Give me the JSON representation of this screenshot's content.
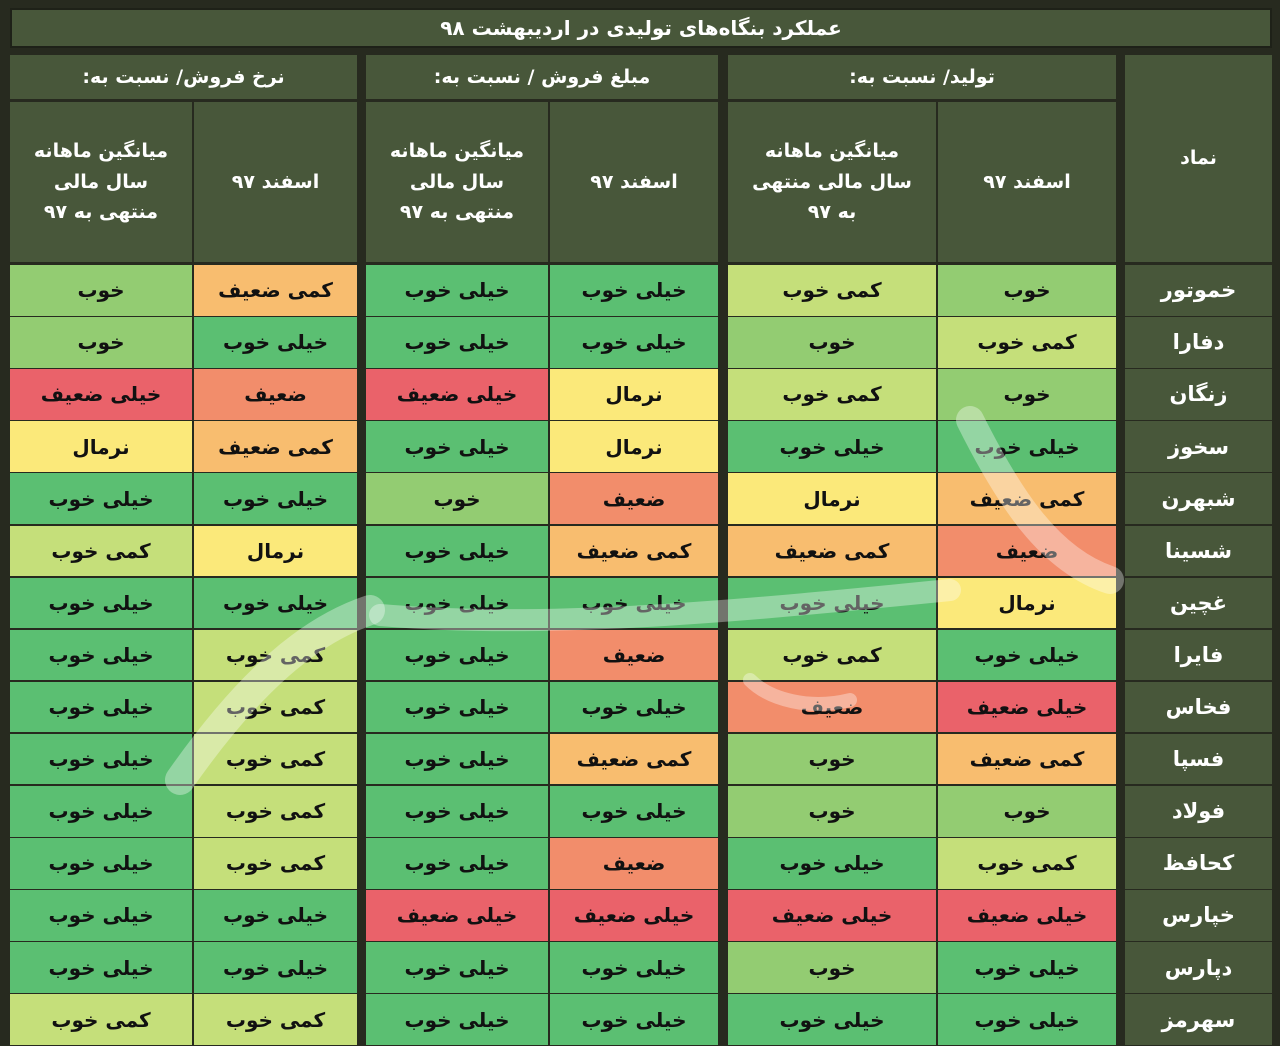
{
  "title": "عملکرد بنگاه‌های تولیدی در اردیبهشت ۹۸",
  "headers": {
    "symbol": "نماد",
    "groups": [
      {
        "label": "تولید/ نسبت به:",
        "sub": [
          "اسفند ۹۷",
          "میانگین ماهانه سال مالی منتهی به ۹۷"
        ]
      },
      {
        "label": "مبلغ فروش / نسبت به:",
        "sub": [
          "اسفند ۹۷",
          "میانگین ماهانه سال مالی منتهی به ۹۷"
        ]
      },
      {
        "label": "نرخ فروش/ نسبت به:",
        "sub": [
          "اسفند ۹۷",
          "میانگین ماهانه سال مالی منتهی به ۹۷"
        ]
      }
    ]
  },
  "ratings": {
    "great": "خیلی خوب",
    "good": "خوب",
    "slightgood": "کمی خوب",
    "normal": "نرمال",
    "slightweak": "کمی ضعیف",
    "weak": "ضعیف",
    "veryweak": "خیلی ضعیف"
  },
  "colors": {
    "great": "#5bbf72",
    "good": "#93cc72",
    "slightgood": "#c5df7a",
    "normal": "#fbe97a",
    "slightweak": "#f8bd6f",
    "weak": "#f28d6b",
    "veryweak": "#ea626a",
    "header": "#48573a"
  },
  "rows": [
    {
      "symbol": "خموتور",
      "values": [
        "good",
        "slightgood",
        "great",
        "great",
        "slightweak",
        "good"
      ]
    },
    {
      "symbol": "دفارا",
      "values": [
        "slightgood",
        "good",
        "great",
        "great",
        "great",
        "good"
      ]
    },
    {
      "symbol": "زنگان",
      "values": [
        "good",
        "slightgood",
        "normal",
        "veryweak",
        "weak",
        "veryweak"
      ]
    },
    {
      "symbol": "سخوز",
      "values": [
        "great",
        "great",
        "normal",
        "great",
        "slightweak",
        "normal"
      ]
    },
    {
      "symbol": "شبهرن",
      "values": [
        "slightweak",
        "normal",
        "weak",
        "good",
        "great",
        "great"
      ]
    },
    {
      "symbol": "شسینا",
      "values": [
        "weak",
        "slightweak",
        "slightweak",
        "great",
        "normal",
        "slightgood"
      ]
    },
    {
      "symbol": "غچین",
      "values": [
        "normal",
        "great",
        "great",
        "great",
        "great",
        "great"
      ]
    },
    {
      "symbol": "فایرا",
      "values": [
        "great",
        "slightgood",
        "weak",
        "great",
        "slightgood",
        "great"
      ]
    },
    {
      "symbol": "فخاس",
      "values": [
        "veryweak",
        "weak",
        "great",
        "great",
        "slightgood",
        "great"
      ]
    },
    {
      "symbol": "فسپا",
      "values": [
        "slightweak",
        "good",
        "slightweak",
        "great",
        "slightgood",
        "great"
      ]
    },
    {
      "symbol": "فولاد",
      "values": [
        "good",
        "good",
        "great",
        "great",
        "slightgood",
        "great"
      ]
    },
    {
      "symbol": "کحافظ",
      "values": [
        "slightgood",
        "great",
        "weak",
        "great",
        "slightgood",
        "great"
      ]
    },
    {
      "symbol": "خپارس",
      "values": [
        "veryweak",
        "veryweak",
        "veryweak",
        "veryweak",
        "great",
        "great"
      ]
    },
    {
      "symbol": "دپارس",
      "values": [
        "great",
        "good",
        "great",
        "great",
        "great",
        "great"
      ]
    },
    {
      "symbol": "سهرمز",
      "values": [
        "great",
        "great",
        "great",
        "great",
        "slightgood",
        "slightgood"
      ]
    }
  ]
}
